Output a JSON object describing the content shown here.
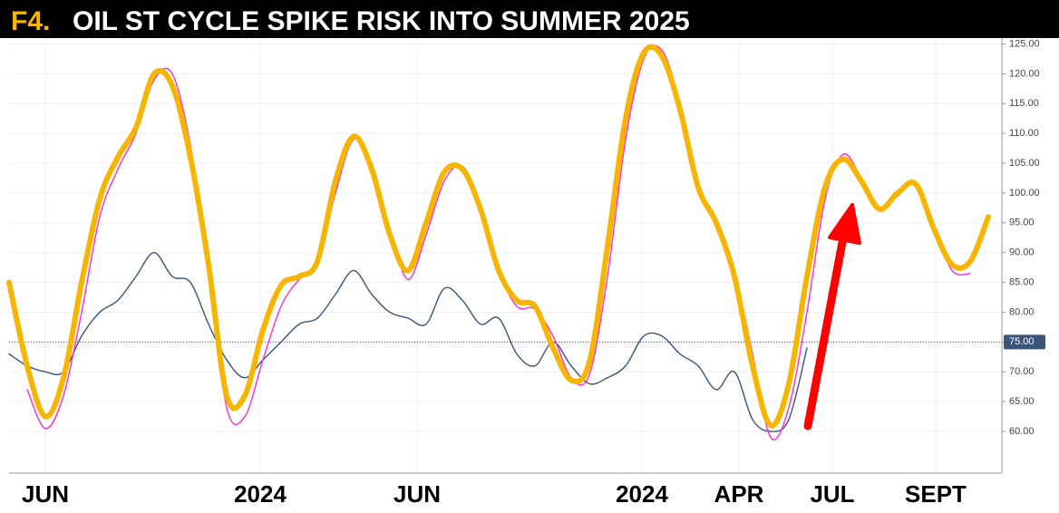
{
  "chart_data": {
    "type": "line",
    "figure_label": "F4.",
    "title": "OIL ST CYCLE SPIKE RISK INTO SUMMER 2025",
    "x": [
      0,
      20,
      40,
      60,
      80,
      100,
      120,
      140,
      160,
      180,
      200,
      220,
      240,
      260,
      280,
      300,
      320,
      340,
      360,
      380,
      400,
      420,
      440,
      460,
      480,
      500,
      520,
      540,
      560,
      580,
      600,
      620,
      640,
      660,
      680,
      700,
      720,
      740,
      760,
      780,
      800,
      820,
      840,
      860,
      880,
      900,
      920,
      940,
      960,
      980,
      1000,
      1020,
      1040,
      1060,
      1080
    ],
    "xlim": [
      0,
      1095
    ],
    "xticks": [
      {
        "value": 40,
        "label": "JUN"
      },
      {
        "value": 277,
        "label": "2024"
      },
      {
        "value": 450,
        "label": "JUN"
      },
      {
        "value": 698,
        "label": "2024"
      },
      {
        "value": 805,
        "label": "APR"
      },
      {
        "value": 908,
        "label": "JUL"
      },
      {
        "value": 1022,
        "label": "SEPT"
      }
    ],
    "ylim": [
      53,
      126
    ],
    "yticks": [
      {
        "value": 60,
        "label": "60.00"
      },
      {
        "value": 65,
        "label": "65.00"
      },
      {
        "value": 70,
        "label": "70.00"
      },
      {
        "value": 75,
        "label": "75.00"
      },
      {
        "value": 80,
        "label": "80.00"
      },
      {
        "value": 85,
        "label": "85.00"
      },
      {
        "value": 90,
        "label": "90.00"
      },
      {
        "value": 95,
        "label": "95.00"
      },
      {
        "value": 100,
        "label": "100.00"
      },
      {
        "value": 105,
        "label": "105.00"
      },
      {
        "value": 110,
        "label": "110.00"
      },
      {
        "value": 115,
        "label": "115.00"
      },
      {
        "value": 120,
        "label": "120.00"
      },
      {
        "value": 125,
        "label": "125.00"
      }
    ],
    "last_price": {
      "value": 75,
      "label": "75.00"
    },
    "grid": true,
    "series": [
      {
        "color": "#3a5577",
        "values": [
          73,
          71,
          70,
          70,
          76,
          80,
          82,
          86,
          90,
          86,
          85,
          78,
          72,
          69,
          72,
          75,
          78,
          79,
          83,
          87,
          83,
          80,
          79,
          78,
          84,
          82,
          78,
          79,
          73,
          71,
          75,
          71,
          68,
          69,
          71,
          76,
          76,
          73,
          71,
          67,
          70,
          62,
          60,
          62,
          74,
          null,
          null,
          null,
          null,
          null,
          null,
          null,
          null,
          null,
          null
        ]
      },
      {
        "color": "#ff2bd6",
        "values": [
          null,
          67,
          60.5,
          66,
          80,
          96,
          104,
          110,
          119,
          120,
          108,
          88,
          64,
          62.5,
          72,
          81,
          85.5,
          88,
          100,
          109,
          105,
          94,
          85.5,
          93,
          102,
          104.5,
          98,
          87,
          81,
          80.5,
          76,
          69,
          69.5,
          86,
          109,
          122.5,
          124,
          115,
          101,
          95,
          87,
          73,
          59,
          64,
          80,
          99,
          106.5,
          102.5,
          97,
          99.5,
          101.5,
          94.5,
          87,
          86.5,
          null
        ]
      },
      {
        "color": "#f7b500",
        "values": [
          85,
          71,
          62.5,
          69,
          85,
          99,
          106,
          111,
          120,
          118,
          106,
          88,
          66,
          66,
          77,
          84.5,
          86,
          88.5,
          102,
          109.5,
          104,
          93,
          87,
          95,
          103.5,
          104,
          97.3,
          87,
          82,
          81,
          74,
          68.6,
          71.6,
          91,
          112.5,
          123.5,
          123,
          114,
          101,
          95,
          86,
          71,
          61,
          68,
          86,
          101,
          105.7,
          102,
          97.3,
          100,
          101.5,
          94,
          88,
          88.5,
          96
        ]
      }
    ]
  }
}
